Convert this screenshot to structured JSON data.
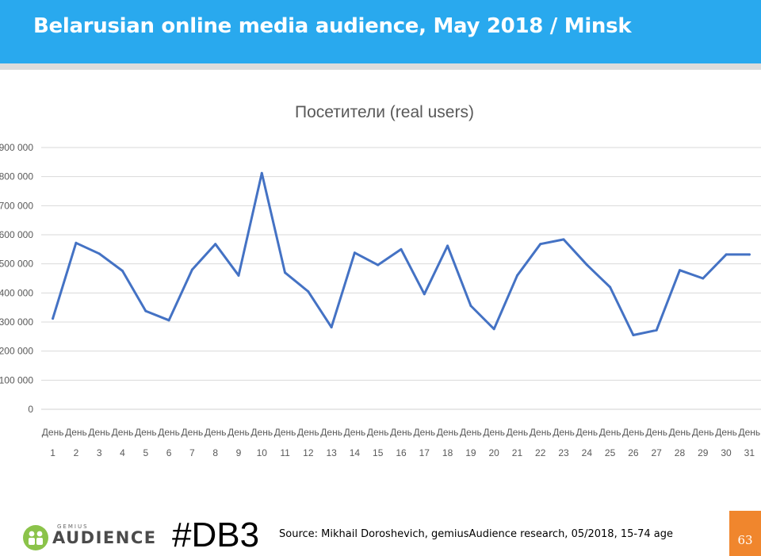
{
  "header": {
    "title": "Belarusian online media audience, May 2018 / Minsk"
  },
  "colors": {
    "header": "#29a9ee",
    "line": "#4472c4",
    "page_box": "#f0862d",
    "logo_green": "#8bc34a"
  },
  "chart_data": {
    "type": "line",
    "title": "Посетители (real users)",
    "categories": [
      "День 1",
      "День 2",
      "День 3",
      "День 4",
      "День 5",
      "День 6",
      "День 7",
      "День 8",
      "День 9",
      "День 10",
      "День 11",
      "День 12",
      "День 13",
      "День 14",
      "День 15",
      "День 16",
      "День 17",
      "День 18",
      "День 19",
      "День 20",
      "День 21",
      "День 22",
      "День 23",
      "День 24",
      "День 25",
      "День 26",
      "День 27",
      "День 28",
      "День 29",
      "День 30",
      "День 31"
    ],
    "category_lines": [
      [
        "День",
        "1"
      ],
      [
        "День",
        "2"
      ],
      [
        "День",
        "3"
      ],
      [
        "День",
        "4"
      ],
      [
        "День",
        "5"
      ],
      [
        "День",
        "6"
      ],
      [
        "День",
        "7"
      ],
      [
        "День",
        "8"
      ],
      [
        "День",
        "9"
      ],
      [
        "День",
        "10"
      ],
      [
        "День",
        "11"
      ],
      [
        "День",
        "12"
      ],
      [
        "День",
        "13"
      ],
      [
        "День",
        "14"
      ],
      [
        "День",
        "15"
      ],
      [
        "День",
        "16"
      ],
      [
        "День",
        "17"
      ],
      [
        "День",
        "18"
      ],
      [
        "День",
        "19"
      ],
      [
        "День",
        "20"
      ],
      [
        "День",
        "21"
      ],
      [
        "День",
        "22"
      ],
      [
        "День",
        "23"
      ],
      [
        "День",
        "24"
      ],
      [
        "День",
        "25"
      ],
      [
        "День",
        "26"
      ],
      [
        "День",
        "27"
      ],
      [
        "День",
        "28"
      ],
      [
        "День",
        "29"
      ],
      [
        "День",
        "30"
      ],
      [
        "День",
        "31"
      ]
    ],
    "values": [
      312000,
      572000,
      535000,
      476000,
      338000,
      306000,
      480000,
      568000,
      460000,
      812000,
      470000,
      405000,
      282000,
      538000,
      496000,
      550000,
      396000,
      562000,
      356000,
      276000,
      460000,
      568000,
      584000,
      497000,
      420000,
      255000,
      272000,
      478000,
      450000,
      532000,
      532000
    ],
    "ylim": [
      0,
      900000
    ],
    "yticks": [
      0,
      100000,
      200000,
      300000,
      400000,
      500000,
      600000,
      700000,
      800000,
      900000
    ],
    "ytick_labels": [
      "0",
      "100 000",
      "200 000",
      "300 000",
      "400 000",
      "500 000",
      "600 000",
      "700 000",
      "800 000",
      "900 000"
    ],
    "grid": true,
    "legend": "none"
  },
  "footer": {
    "logo_small": "GEMIUS",
    "logo_main": "AUDIENCE",
    "hashtag": "#DB3",
    "source": "Source: Mikhail Doroshevich, gemiusAudience research,  05/2018, 15-74 age",
    "page_number": "63"
  }
}
